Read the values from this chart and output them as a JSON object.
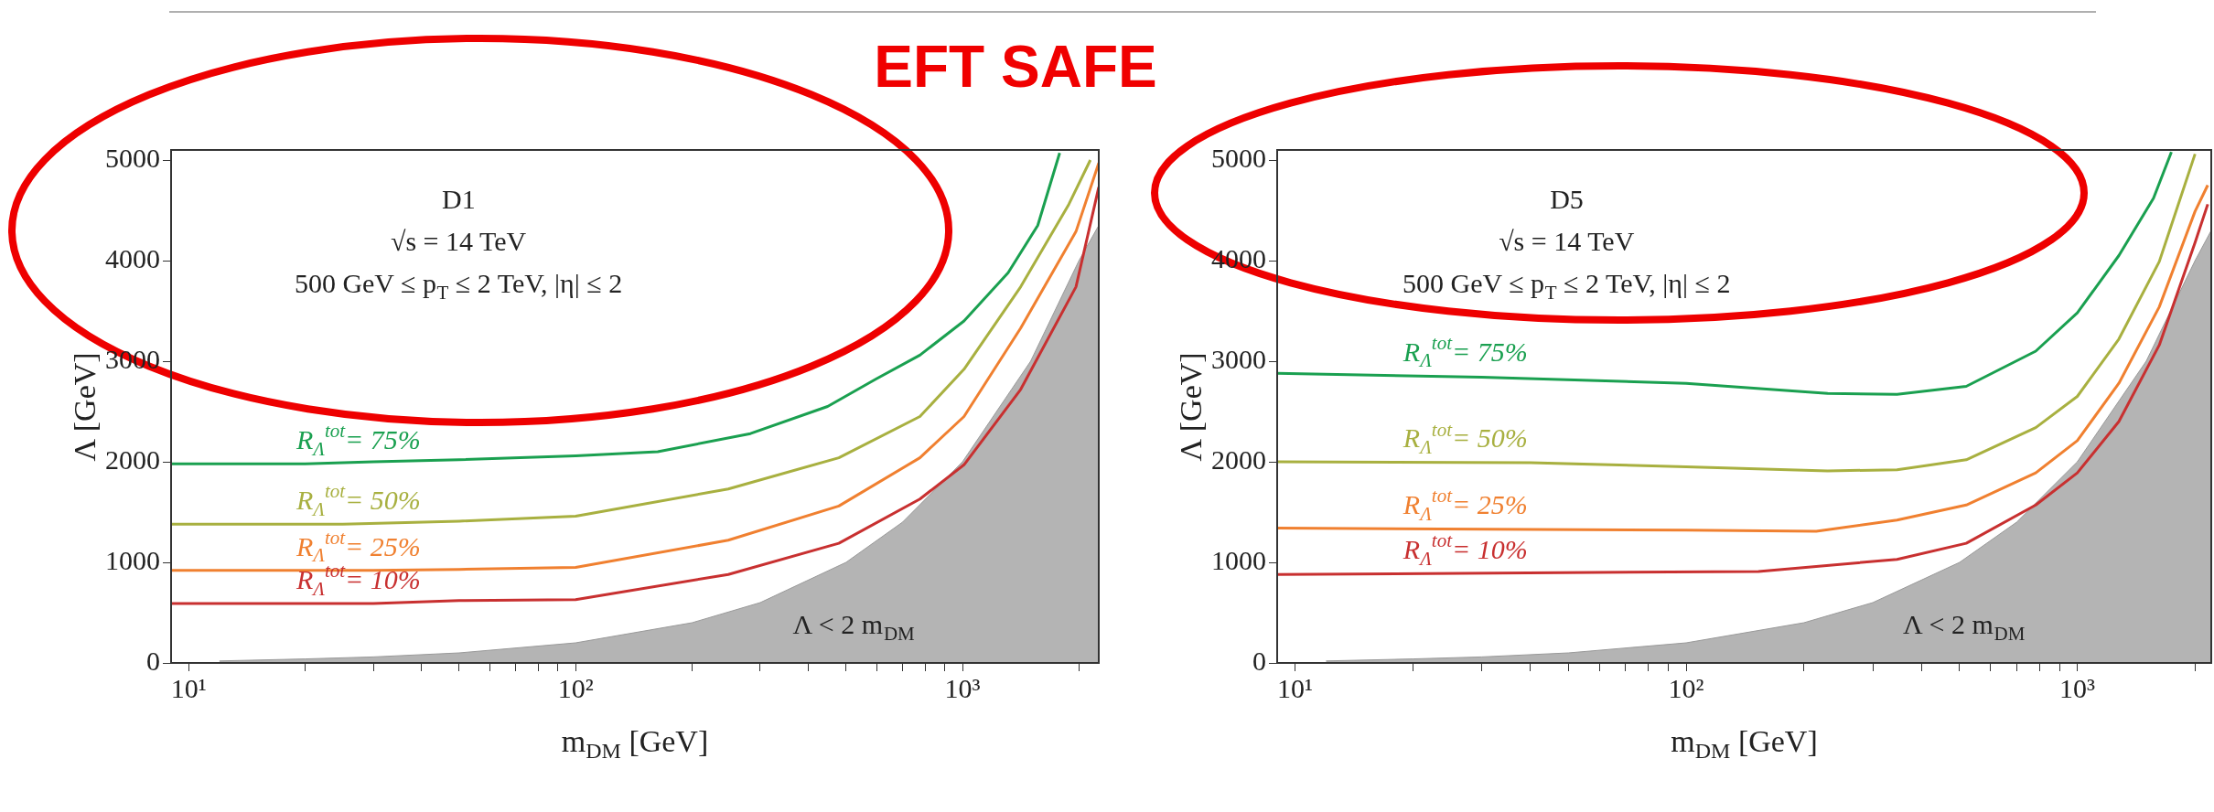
{
  "chart_data": [
    {
      "type": "line",
      "title": "EFT SAFE",
      "xlabel": "m$_{DM}$ [GeV]",
      "ylabel": "Λ [GeV]",
      "log": "x",
      "xlim": [
        9,
        2250
      ],
      "xticks": [
        {
          "value": 10,
          "label": "10¹"
        },
        {
          "value": 20,
          "label": null
        },
        {
          "value": 30,
          "label": null
        },
        {
          "value": 40,
          "label": null
        },
        {
          "value": 50,
          "label": null
        },
        {
          "value": 60,
          "label": null
        },
        {
          "value": 70,
          "label": null
        },
        {
          "value": 80,
          "label": null
        },
        {
          "value": 90,
          "label": null
        },
        {
          "value": 100,
          "label": "10²"
        },
        {
          "value": 200,
          "label": null
        },
        {
          "value": 300,
          "label": null
        },
        {
          "value": 400,
          "label": null
        },
        {
          "value": 500,
          "label": null
        },
        {
          "value": 600,
          "label": null
        },
        {
          "value": 700,
          "label": null
        },
        {
          "value": 800,
          "label": null
        },
        {
          "value": 900,
          "label": null
        },
        {
          "value": 1000,
          "label": "10³"
        },
        {
          "value": 2000,
          "label": null
        }
      ],
      "ylim": [
        0,
        5100
      ],
      "yticks": [
        0,
        1000,
        2000,
        3000,
        4000,
        5000
      ],
      "annotations": [
        "D1",
        "√s = 14 TeV",
        "500 GeV ≤ p$_{T}$ ≤ 2 TeV, |η| ≤ 2"
      ],
      "series": [
        {
          "type": "area",
          "name": "Λ < 2 m$_{DM}$",
          "color": "#b4b4b4",
          "x": [
            12,
            20,
            30,
            50,
            100,
            200,
            300,
            500,
            700,
            1000,
            1500,
            2000,
            2250
          ],
          "values": [
            20,
            40,
            60,
            100,
            200,
            400,
            600,
            1000,
            1400,
            2000,
            3000,
            4000,
            4350
          ]
        },
        {
          "name": "R$_{Λ}$$^{tot}$= 75%",
          "color": "#1aa050",
          "x": [
            9,
            20,
            30,
            50,
            100,
            163,
            283,
            448,
            596,
            776,
            1009,
            1312,
            1565,
            1783
          ],
          "values": [
            1980,
            1980,
            2000,
            2020,
            2060,
            2100,
            2280,
            2550,
            2820,
            3060,
            3400,
            3880,
            4350,
            5070
          ]
        },
        {
          "name": "R$_{Λ}$$^{tot}$= 50%",
          "color": "#a8b040",
          "x": [
            9,
            25,
            50,
            100,
            248,
            479,
            776,
            1009,
            1414,
            1883,
            2140
          ],
          "values": [
            1380,
            1380,
            1410,
            1460,
            1730,
            2040,
            2450,
            2920,
            3740,
            4560,
            5000
          ]
        },
        {
          "name": "R$_{Λ}$$^{tot}$= 25%",
          "color": "#f08030",
          "x": [
            9,
            30,
            50,
            100,
            248,
            479,
            776,
            1009,
            1414,
            1965,
            2250
          ],
          "values": [
            920,
            920,
            930,
            950,
            1220,
            1560,
            2040,
            2450,
            3330,
            4290,
            4970
          ]
        },
        {
          "name": "R$_{Λ}$$^{tot}$= 10%",
          "color": "#c83030",
          "x": [
            9,
            30,
            50,
            100,
            248,
            479,
            776,
            1009,
            1414,
            1965,
            2250
          ],
          "values": [
            590,
            590,
            620,
            630,
            880,
            1190,
            1630,
            1970,
            2720,
            3740,
            4730
          ]
        }
      ]
    },
    {
      "type": "line",
      "xlabel": "m$_{DM}$ [GeV]",
      "ylabel": "Λ [GeV]",
      "log": "x",
      "xlim": [
        9,
        2200
      ],
      "xticks": [
        {
          "value": 10,
          "label": "10¹"
        },
        {
          "value": 20,
          "label": null
        },
        {
          "value": 30,
          "label": null
        },
        {
          "value": 40,
          "label": null
        },
        {
          "value": 50,
          "label": null
        },
        {
          "value": 60,
          "label": null
        },
        {
          "value": 70,
          "label": null
        },
        {
          "value": 80,
          "label": null
        },
        {
          "value": 90,
          "label": null
        },
        {
          "value": 100,
          "label": "10²"
        },
        {
          "value": 200,
          "label": null
        },
        {
          "value": 300,
          "label": null
        },
        {
          "value": 400,
          "label": null
        },
        {
          "value": 500,
          "label": null
        },
        {
          "value": 600,
          "label": null
        },
        {
          "value": 700,
          "label": null
        },
        {
          "value": 800,
          "label": null
        },
        {
          "value": 900,
          "label": null
        },
        {
          "value": 1000,
          "label": "10³"
        },
        {
          "value": 2000,
          "label": null
        }
      ],
      "ylim": [
        0,
        5100
      ],
      "yticks": [
        0,
        1000,
        2000,
        3000,
        4000,
        5000
      ],
      "annotations": [
        "D5",
        "√s = 14 TeV",
        "500 GeV ≤ p$_{T}$ ≤ 2 TeV, |η| ≤ 2"
      ],
      "series": [
        {
          "type": "area",
          "name": "Λ < 2 m$_{DM}$",
          "color": "#b4b4b4",
          "x": [
            12,
            20,
            30,
            50,
            100,
            200,
            300,
            500,
            700,
            1000,
            1500,
            2000,
            2200
          ],
          "values": [
            20,
            40,
            60,
            100,
            200,
            400,
            600,
            1000,
            1400,
            2000,
            3000,
            4000,
            4300
          ]
        },
        {
          "name": "R$_{Λ}$$^{tot}$= 75%",
          "color": "#1aa050",
          "x": [
            9,
            30,
            100,
            230,
            346,
            520,
            783,
            1000,
            1277,
            1566,
            1740
          ],
          "values": [
            2880,
            2840,
            2780,
            2680,
            2670,
            2750,
            3100,
            3480,
            4050,
            4620,
            5080
          ]
        },
        {
          "name": "R$_{Λ}$$^{tot}$= 50%",
          "color": "#a8b040",
          "x": [
            9,
            40,
            100,
            230,
            346,
            520,
            783,
            1000,
            1277,
            1620,
            2000
          ],
          "values": [
            2000,
            1990,
            1950,
            1910,
            1920,
            2020,
            2340,
            2650,
            3220,
            3990,
            5060
          ]
        },
        {
          "name": "R$_{Λ}$$^{tot}$= 25%",
          "color": "#f08030",
          "x": [
            9,
            100,
            215,
            346,
            520,
            783,
            1000,
            1277,
            1620,
            2000,
            2155
          ],
          "values": [
            1340,
            1320,
            1310,
            1420,
            1570,
            1890,
            2210,
            2780,
            3540,
            4490,
            4750
          ]
        },
        {
          "name": "R$_{Λ}$$^{tot}$= 10%",
          "color": "#c83030",
          "x": [
            9,
            153,
            346,
            520,
            783,
            1000,
            1277,
            1620,
            2000,
            2155
          ],
          "values": [
            880,
            910,
            1030,
            1190,
            1570,
            1890,
            2400,
            3160,
            4180,
            4560
          ]
        }
      ]
    }
  ]
}
